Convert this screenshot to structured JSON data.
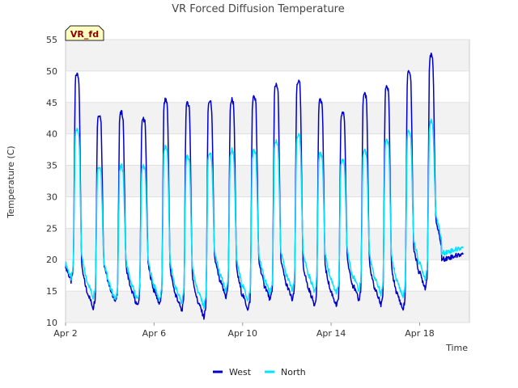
{
  "chart_data": {
    "type": "line",
    "title": "VR Forced Diffusion Temperature",
    "xlabel": "Time",
    "ylabel": "Temperature (C)",
    "badge": "VR_fd",
    "ylim": [
      10,
      55
    ],
    "yticks": [
      10,
      15,
      20,
      25,
      30,
      35,
      40,
      45,
      50,
      55
    ],
    "xlim": [
      "2023-04-02T00:00",
      "2023-04-20T06:00"
    ],
    "xticks": [
      {
        "date": "2023-04-02",
        "label": "Apr 2"
      },
      {
        "date": "2023-04-06",
        "label": "Apr 6"
      },
      {
        "date": "2023-04-10",
        "label": "Apr 10"
      },
      {
        "date": "2023-04-14",
        "label": "Apr 14"
      },
      {
        "date": "2023-04-18",
        "label": "Apr 18"
      }
    ],
    "grid": true,
    "legend_position": "bottom-center",
    "colors": {
      "West": "#0000cc",
      "North": "#00e5ff"
    },
    "series": [
      {
        "name": "West",
        "color": "#0000cc",
        "days": [
          {
            "min": 16.5,
            "max": 49.8
          },
          {
            "min": 12.3,
            "max": 43.2
          },
          {
            "min": 13.2,
            "max": 43.5
          },
          {
            "min": 12.5,
            "max": 42.5
          },
          {
            "min": 12.8,
            "max": 45.5
          },
          {
            "min": 11.8,
            "max": 45.0
          },
          {
            "min": 10.8,
            "max": 45.3
          },
          {
            "min": 14.0,
            "max": 45.5
          },
          {
            "min": 12.0,
            "max": 46.0
          },
          {
            "min": 13.5,
            "max": 48.0
          },
          {
            "min": 13.5,
            "max": 48.5
          },
          {
            "min": 12.8,
            "max": 45.5
          },
          {
            "min": 12.5,
            "max": 43.5
          },
          {
            "min": 13.5,
            "max": 46.5
          },
          {
            "min": 12.8,
            "max": 47.5
          },
          {
            "min": 12.0,
            "max": 50.0
          },
          {
            "min": 15.5,
            "max": 52.5
          },
          {
            "min": 20.0,
            "max": null
          }
        ]
      },
      {
        "name": "North",
        "color": "#00e5ff",
        "days": [
          {
            "min": 17.0,
            "max": 41.0
          },
          {
            "min": 14.0,
            "max": 35.0
          },
          {
            "min": 13.5,
            "max": 35.0
          },
          {
            "min": 13.5,
            "max": 35.0
          },
          {
            "min": 13.5,
            "max": 38.0
          },
          {
            "min": 13.0,
            "max": 36.5
          },
          {
            "min": 12.5,
            "max": 37.0
          },
          {
            "min": 15.0,
            "max": 37.5
          },
          {
            "min": 13.5,
            "max": 37.5
          },
          {
            "min": 14.5,
            "max": 39.0
          },
          {
            "min": 15.0,
            "max": 40.0
          },
          {
            "min": 15.0,
            "max": 37.0
          },
          {
            "min": 14.5,
            "max": 36.0
          },
          {
            "min": 15.0,
            "max": 37.5
          },
          {
            "min": 14.5,
            "max": 39.0
          },
          {
            "min": 14.0,
            "max": 40.5
          },
          {
            "min": 17.0,
            "max": 42.0
          },
          {
            "min": 21.0,
            "max": null
          }
        ]
      }
    ]
  }
}
